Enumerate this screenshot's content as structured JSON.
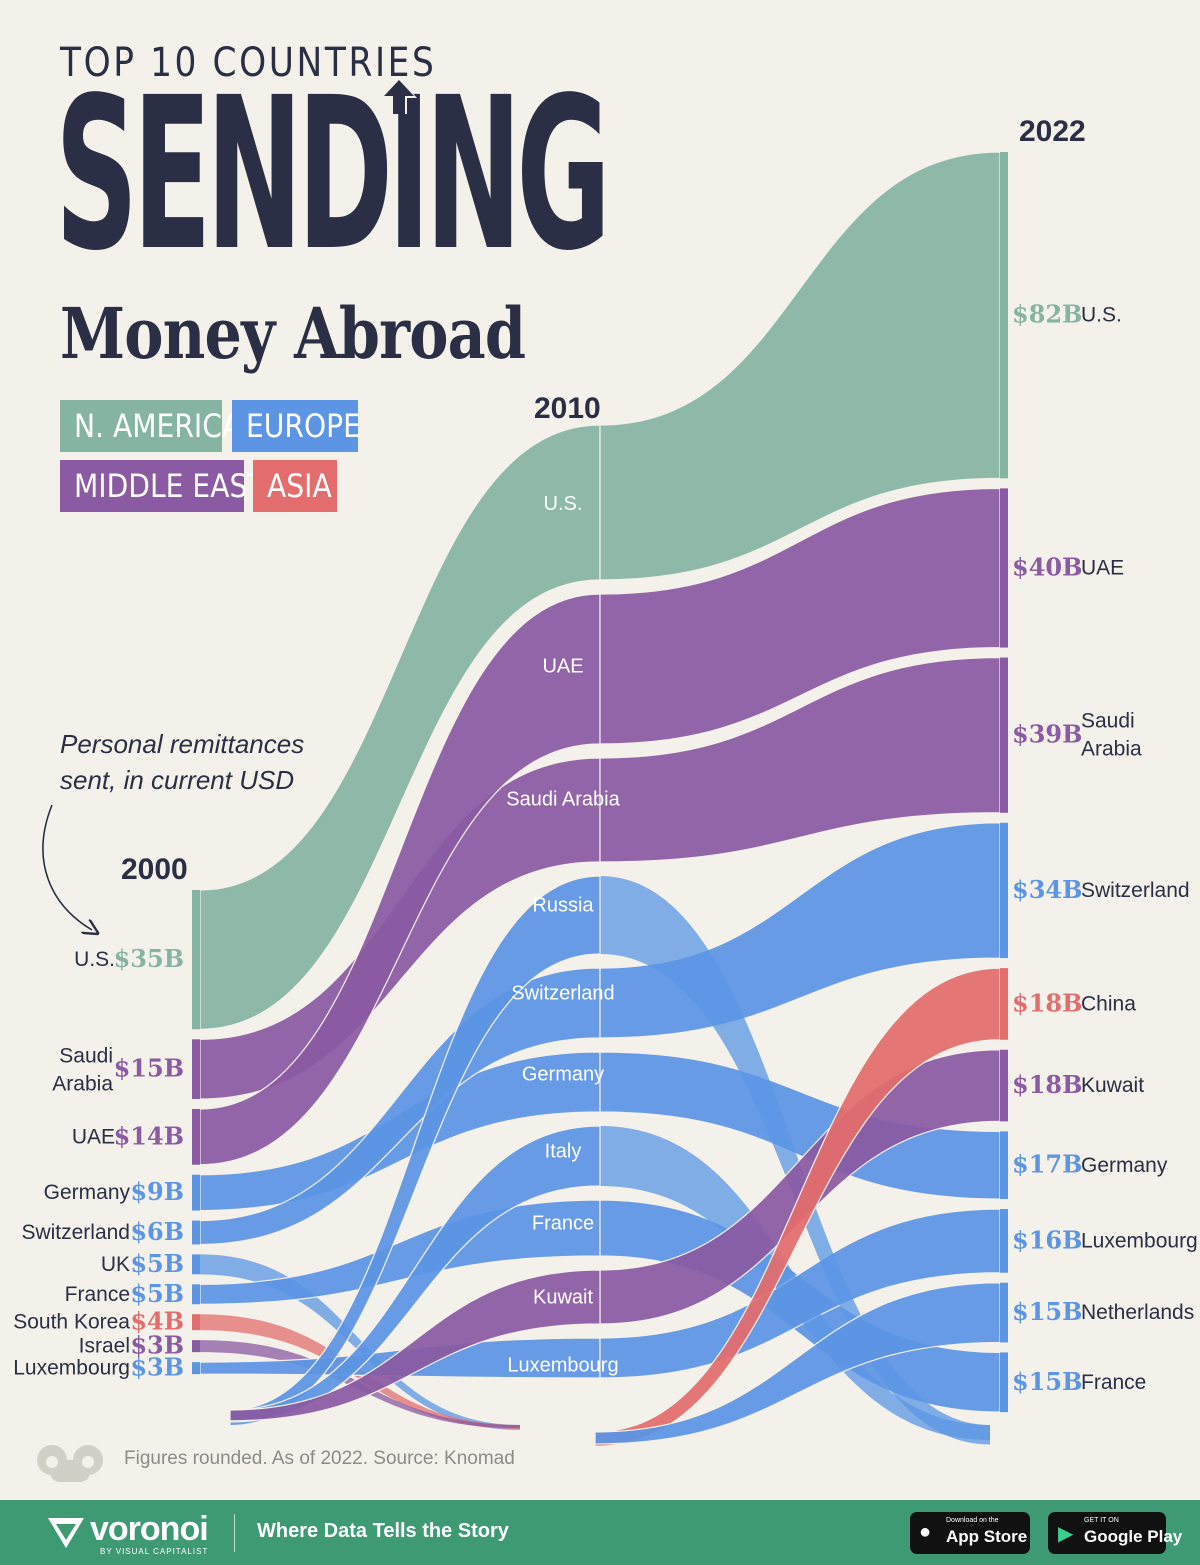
{
  "title": {
    "line1": "TOP 10 COUNTRIES",
    "line2": "SENDING",
    "line3": "Money Abroad"
  },
  "legend": [
    {
      "label": "N. AMERICA",
      "color": "#85b5a2"
    },
    {
      "label": "EUROPE",
      "color": "#5b95e4"
    },
    {
      "label": "MIDDLE EAST",
      "color": "#8a5aa3"
    },
    {
      "label": "ASIA",
      "color": "#e36d6d"
    }
  ],
  "note": {
    "line1": "Personal remittances",
    "line2": "sent, in current USD"
  },
  "years": {
    "y2000": "2000",
    "y2010": "2010",
    "y2022": "2022"
  },
  "chart_data": {
    "type": "bump",
    "colors": {
      "N. America": "#85b5a2",
      "Europe": "#5b95e4",
      "Middle East": "#8a5aa3",
      "Asia": "#e36d6d"
    },
    "columns": [
      {
        "year": "2000",
        "entries": [
          {
            "country": "U.S.",
            "value": 35,
            "label": "$35B",
            "region": "N. America"
          },
          {
            "country": "Saudi Arabia",
            "value": 15,
            "label": "$15B",
            "region": "Middle East"
          },
          {
            "country": "UAE",
            "value": 14,
            "label": "$14B",
            "region": "Middle East"
          },
          {
            "country": "Germany",
            "value": 9,
            "label": "$9B",
            "region": "Europe"
          },
          {
            "country": "Switzerland",
            "value": 6,
            "label": "$6B",
            "region": "Europe"
          },
          {
            "country": "UK",
            "value": 5,
            "label": "$5B",
            "region": "Europe"
          },
          {
            "country": "France",
            "value": 5,
            "label": "$5B",
            "region": "Europe"
          },
          {
            "country": "South Korea",
            "value": 4,
            "label": "$4B",
            "region": "Asia"
          },
          {
            "country": "Israel",
            "value": 3,
            "label": "$3B",
            "region": "Middle East"
          },
          {
            "country": "Luxembourg",
            "value": 3,
            "label": "$3B",
            "region": "Europe"
          }
        ]
      },
      {
        "year": "2010",
        "entries": [
          {
            "country": "U.S.",
            "region": "N. America"
          },
          {
            "country": "UAE",
            "region": "Middle East"
          },
          {
            "country": "Saudi Arabia",
            "region": "Middle East"
          },
          {
            "country": "Russia",
            "region": "Europe"
          },
          {
            "country": "Switzerland",
            "region": "Europe"
          },
          {
            "country": "Germany",
            "region": "Europe"
          },
          {
            "country": "Italy",
            "region": "Europe"
          },
          {
            "country": "France",
            "region": "Europe"
          },
          {
            "country": "Kuwait",
            "region": "Middle East"
          },
          {
            "country": "Luxembourg",
            "region": "Europe"
          }
        ]
      },
      {
        "year": "2022",
        "entries": [
          {
            "country": "U.S.",
            "value": 82,
            "label": "$82B",
            "region": "N. America"
          },
          {
            "country": "UAE",
            "value": 40,
            "label": "$40B",
            "region": "Middle East"
          },
          {
            "country": "Saudi Arabia",
            "value": 39,
            "label": "$39B",
            "region": "Middle East"
          },
          {
            "country": "Switzerland",
            "value": 34,
            "label": "$34B",
            "region": "Europe"
          },
          {
            "country": "China",
            "value": 18,
            "label": "$18B",
            "region": "Asia"
          },
          {
            "country": "Kuwait",
            "value": 18,
            "label": "$18B",
            "region": "Middle East"
          },
          {
            "country": "Germany",
            "value": 17,
            "label": "$17B",
            "region": "Europe"
          },
          {
            "country": "Luxembourg",
            "value": 16,
            "label": "$16B",
            "region": "Europe"
          },
          {
            "country": "Netherlands",
            "value": 15,
            "label": "$15B",
            "region": "Europe"
          },
          {
            "country": "France",
            "value": 15,
            "label": "$15B",
            "region": "Europe"
          }
        ]
      }
    ]
  },
  "footer": {
    "source": "Figures rounded. As of 2022. Source: Knomad",
    "brand": "voronoi",
    "brand_sub": "BY VISUAL CAPITALIST",
    "tagline": "Where Data Tells the Story",
    "appstore_small": "Download on the",
    "appstore_big": "App Store",
    "googleplay_small": "GET IT ON",
    "googleplay_big": "Google Play"
  }
}
